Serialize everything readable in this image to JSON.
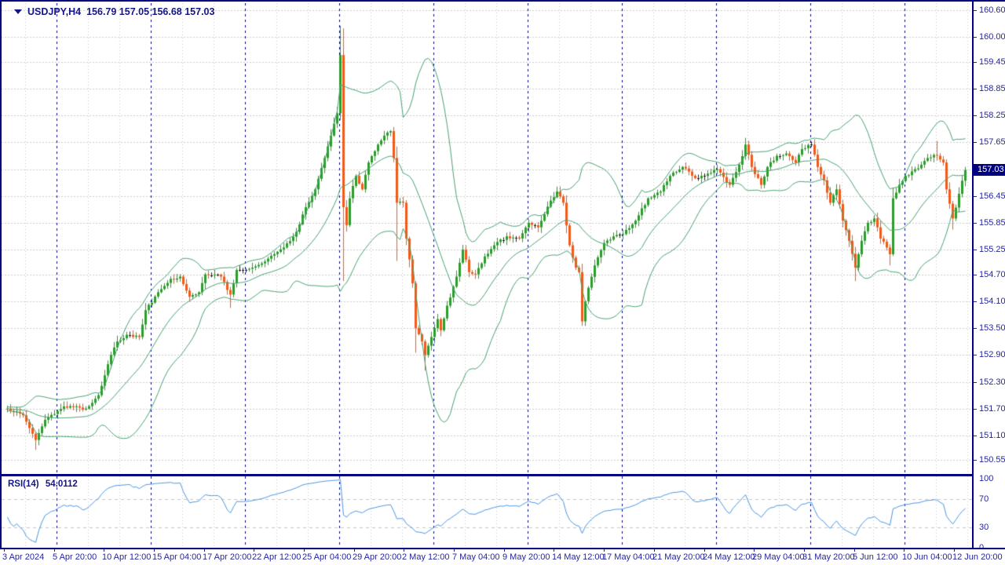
{
  "header": {
    "symbol": "USDJPY,H4",
    "ohlc_text": "156.79 157.05 156.68 157.03"
  },
  "rsi_header": {
    "label": "RSI(14)",
    "value": "54.0112"
  },
  "current_price": "157.03",
  "colors": {
    "background": "#FFFFFF",
    "frame": "#000080",
    "axis_text": "#26269B",
    "title_text": "#15158A",
    "grid": "#CDCDCD",
    "separator": "#000080",
    "bull": "#2E9B2E",
    "bear": "#F2591B",
    "doji": "#222222",
    "bollinger": "#4AA273",
    "rsi_line": "#4B96E0",
    "rsi_level_dash": "#C8C8C8",
    "badge_bg": "#000080",
    "badge_text": "#FFFFFF"
  },
  "chart_data": {
    "type": "candlestick",
    "symbol": "USDJPY",
    "timeframe": "H4",
    "title": "USDJPY,H4 156.79 157.05 156.68 157.03",
    "last_ohlc": {
      "open": 156.79,
      "high": 157.05,
      "low": 156.68,
      "close": 157.03
    },
    "current_price": 157.03,
    "candles_count": 306,
    "grid": true,
    "price_axis": {
      "top_price": 160.76,
      "bottom_price": 150.24,
      "levels": [
        160.6,
        160.0,
        159.45,
        158.85,
        158.25,
        157.65,
        157.05,
        156.45,
        155.85,
        155.25,
        154.7,
        154.1,
        153.5,
        152.9,
        152.3,
        151.7,
        151.1,
        150.55
      ],
      "hidden_level": 157.05
    },
    "time_axis": {
      "labels": [
        "3 Apr 2024",
        "5 Apr 20:00",
        "10 Apr 12:00",
        "15 Apr 04:00",
        "17 Apr 20:00",
        "22 Apr 12:00",
        "25 Apr 04:00",
        "29 Apr 20:00",
        "2 May 12:00",
        "7 May 04:00",
        "9 May 20:00",
        "14 May 12:00",
        "17 May 04:00",
        "21 May 20:00",
        "24 May 12:00",
        "29 May 04:00",
        "31 May 20:00",
        "5 Jun 12:00",
        "10 Jun 04:00",
        "12 Jun 20:00"
      ]
    },
    "close_path": [
      [
        0,
        151.7
      ],
      [
        5,
        151.55
      ],
      [
        9,
        151.0
      ],
      [
        12,
        151.45
      ],
      [
        18,
        151.75
      ],
      [
        25,
        151.7
      ],
      [
        29,
        152.0
      ],
      [
        33,
        152.9
      ],
      [
        35,
        153.2
      ],
      [
        38,
        153.35
      ],
      [
        42,
        153.3
      ],
      [
        44,
        153.9
      ],
      [
        48,
        154.3
      ],
      [
        52,
        154.6
      ],
      [
        55,
        154.65
      ],
      [
        58,
        154.2
      ],
      [
        61,
        154.3
      ],
      [
        63,
        154.7
      ],
      [
        68,
        154.65
      ],
      [
        71,
        154.25
      ],
      [
        73,
        154.8
      ],
      [
        78,
        154.85
      ],
      [
        83,
        155.05
      ],
      [
        88,
        155.3
      ],
      [
        92,
        155.65
      ],
      [
        95,
        156.2
      ],
      [
        98,
        156.6
      ],
      [
        101,
        157.3
      ],
      [
        103,
        157.8
      ],
      [
        105,
        158.3
      ],
      [
        106,
        159.6
      ],
      [
        107,
        156.2
      ],
      [
        108,
        155.8
      ],
      [
        109,
        156.4
      ],
      [
        111,
        156.9
      ],
      [
        113,
        156.6
      ],
      [
        115,
        157.2
      ],
      [
        118,
        157.6
      ],
      [
        120,
        157.8
      ],
      [
        122,
        157.9
      ],
      [
        123,
        157.3
      ],
      [
        124,
        156.3
      ],
      [
        126,
        156.3
      ],
      [
        127,
        155.5
      ],
      [
        129,
        154.5
      ],
      [
        130,
        153.5
      ],
      [
        132,
        153.2
      ],
      [
        133,
        152.9
      ],
      [
        135,
        153.3
      ],
      [
        137,
        153.7
      ],
      [
        138,
        153.45
      ],
      [
        140,
        154.0
      ],
      [
        143,
        154.65
      ],
      [
        145,
        155.25
      ],
      [
        147,
        154.75
      ],
      [
        149,
        154.7
      ],
      [
        152,
        155.1
      ],
      [
        155,
        155.35
      ],
      [
        159,
        155.55
      ],
      [
        163,
        155.5
      ],
      [
        166,
        155.85
      ],
      [
        169,
        155.75
      ],
      [
        173,
        156.35
      ],
      [
        175,
        156.55
      ],
      [
        177,
        156.3
      ],
      [
        179,
        155.35
      ],
      [
        181,
        154.85
      ],
      [
        182,
        154.75
      ],
      [
        183,
        153.65
      ],
      [
        184,
        154.1
      ],
      [
        185,
        154.4
      ],
      [
        187,
        154.9
      ],
      [
        190,
        155.4
      ],
      [
        193,
        155.55
      ],
      [
        196,
        155.6
      ],
      [
        200,
        155.9
      ],
      [
        204,
        156.4
      ],
      [
        208,
        156.55
      ],
      [
        211,
        156.9
      ],
      [
        215,
        157.1
      ],
      [
        219,
        156.85
      ],
      [
        223,
        156.95
      ],
      [
        226,
        157.05
      ],
      [
        230,
        156.7
      ],
      [
        233,
        157.15
      ],
      [
        235,
        157.6
      ],
      [
        237,
        157.1
      ],
      [
        240,
        156.7
      ],
      [
        242,
        157.1
      ],
      [
        245,
        157.35
      ],
      [
        248,
        157.4
      ],
      [
        251,
        157.2
      ],
      [
        253,
        157.5
      ],
      [
        256,
        157.6
      ],
      [
        258,
        157.1
      ],
      [
        260,
        156.8
      ],
      [
        262,
        156.3
      ],
      [
        264,
        156.6
      ],
      [
        266,
        155.9
      ],
      [
        268,
        155.45
      ],
      [
        270,
        154.85
      ],
      [
        272,
        155.45
      ],
      [
        274,
        155.85
      ],
      [
        276,
        155.95
      ],
      [
        278,
        155.5
      ],
      [
        280,
        155.3
      ],
      [
        281,
        155.15
      ],
      [
        282,
        156.4
      ],
      [
        284,
        156.7
      ],
      [
        286,
        156.9
      ],
      [
        288,
        157.0
      ],
      [
        291,
        157.15
      ],
      [
        293,
        157.3
      ],
      [
        296,
        157.35
      ],
      [
        298,
        157.2
      ],
      [
        299,
        156.6
      ],
      [
        301,
        155.95
      ],
      [
        303,
        156.5
      ],
      [
        305,
        157.03
      ]
    ],
    "wick_overrides": {
      "9": {
        "low": 150.78
      },
      "71": {
        "low": 153.95
      },
      "106": {
        "high": 160.25
      },
      "107": {
        "low": 154.55
      },
      "124": {
        "low": 155.0
      },
      "130": {
        "low": 152.95
      },
      "133": {
        "low": 152.55
      },
      "183": {
        "low": 153.55
      },
      "235": {
        "high": 157.75
      },
      "270": {
        "low": 154.55
      },
      "281": {
        "low": 154.9
      },
      "296": {
        "high": 157.68
      },
      "301": {
        "low": 155.7
      }
    },
    "indicators": {
      "bollinger": {
        "period": 20,
        "deviation": 2
      },
      "rsi": {
        "period": 14,
        "value": 54.0112,
        "scale_levels": [
          100,
          70,
          30,
          0
        ],
        "dashed_levels": [
          70,
          30
        ]
      }
    },
    "legend_position": "none"
  }
}
